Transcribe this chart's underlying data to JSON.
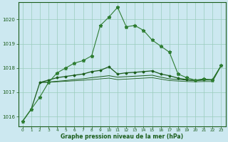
{
  "title": "Graphe pression niveau de la mer (hPa)",
  "background_color": "#cce8f0",
  "grid_color": "#99ccbb",
  "line_color_dark": "#1a5c1a",
  "line_color_med": "#2e7d32",
  "ylim": [
    1015.6,
    1020.7
  ],
  "yticks": [
    1016,
    1017,
    1018,
    1019,
    1020
  ],
  "xlim": [
    -0.5,
    23.5
  ],
  "xticks": [
    0,
    1,
    2,
    3,
    4,
    5,
    6,
    7,
    8,
    9,
    10,
    11,
    12,
    13,
    14,
    15,
    16,
    17,
    18,
    19,
    20,
    21,
    22,
    23
  ],
  "series_main": {
    "x": [
      0,
      1,
      2,
      3,
      4,
      5,
      6,
      7,
      8,
      9,
      10,
      11,
      12,
      13,
      14,
      15,
      16,
      17,
      18,
      19,
      20,
      21,
      22,
      23
    ],
    "y": [
      1015.8,
      1016.3,
      1016.8,
      1017.4,
      1017.8,
      1018.0,
      1018.2,
      1018.3,
      1018.5,
      1019.75,
      1020.1,
      1020.5,
      1019.7,
      1019.75,
      1019.55,
      1019.15,
      1018.9,
      1018.65,
      1017.75,
      1017.6,
      1017.5,
      1017.55,
      1017.5,
      1018.1
    ]
  },
  "series_smooth": {
    "x": [
      0,
      1,
      2,
      3,
      4,
      5,
      6,
      7,
      8,
      9,
      10,
      11,
      12,
      13,
      14,
      15,
      16,
      17,
      18,
      19,
      20,
      21,
      22,
      23
    ],
    "y": [
      1015.8,
      1016.3,
      1017.4,
      1017.5,
      1017.6,
      1017.65,
      1017.7,
      1017.75,
      1017.85,
      1017.9,
      1018.05,
      1017.75,
      1017.8,
      1017.82,
      1017.85,
      1017.88,
      1017.75,
      1017.68,
      1017.58,
      1017.52,
      1017.48,
      1017.52,
      1017.52,
      1018.1
    ]
  },
  "series_flat1": {
    "x": [
      2,
      3,
      4,
      5,
      6,
      7,
      8,
      9,
      10,
      11,
      12,
      13,
      14,
      15,
      16,
      17,
      18,
      19,
      20,
      21,
      22,
      23
    ],
    "y": [
      1017.4,
      1017.42,
      1017.45,
      1017.48,
      1017.52,
      1017.55,
      1017.6,
      1017.64,
      1017.68,
      1017.62,
      1017.64,
      1017.66,
      1017.68,
      1017.7,
      1017.62,
      1017.55,
      1017.52,
      1017.5,
      1017.48,
      1017.5,
      1017.5,
      1018.1
    ]
  },
  "series_flat2": {
    "x": [
      2,
      3,
      4,
      5,
      6,
      7,
      8,
      9,
      10,
      11,
      12,
      13,
      14,
      15,
      16,
      17,
      18,
      19,
      20,
      21,
      22,
      23
    ],
    "y": [
      1017.4,
      1017.41,
      1017.43,
      1017.45,
      1017.47,
      1017.49,
      1017.52,
      1017.55,
      1017.58,
      1017.52,
      1017.54,
      1017.56,
      1017.58,
      1017.6,
      1017.54,
      1017.48,
      1017.46,
      1017.44,
      1017.43,
      1017.44,
      1017.44,
      1018.1
    ]
  }
}
